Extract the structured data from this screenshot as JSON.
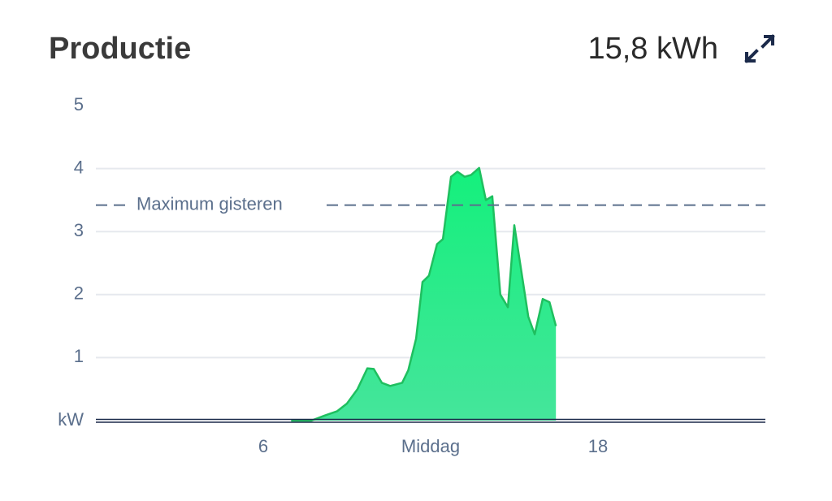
{
  "chart_data": {
    "type": "area",
    "title": "Productie",
    "total": "15,8 kWh",
    "color": "#22e07f",
    "x": [
      7.0,
      7.72,
      8.2,
      8.65,
      9.0,
      9.38,
      9.73,
      9.96,
      10.25,
      10.55,
      10.98,
      11.2,
      11.48,
      11.71,
      11.94,
      12.23,
      12.44,
      12.73,
      12.96,
      13.22,
      13.45,
      13.74,
      13.98,
      14.21,
      14.5,
      14.77,
      15.0,
      15.5,
      15.73,
      16.02,
      16.26,
      16.49
    ],
    "values": [
      0,
      0,
      0.08,
      0.15,
      0.27,
      0.5,
      0.83,
      0.82,
      0.6,
      0.55,
      0.6,
      0.8,
      1.3,
      2.2,
      2.3,
      2.8,
      2.88,
      3.87,
      3.95,
      3.87,
      3.9,
      4.01,
      3.5,
      3.56,
      2.0,
      1.8,
      3.1,
      1.65,
      1.37,
      1.93,
      1.88,
      1.5
    ],
    "xlim": [
      0,
      24
    ],
    "xticks": [
      6,
      {
        "value": 12,
        "label": "Middag"
      },
      18
    ],
    "ylim": [
      0,
      5
    ],
    "yticks": [
      {
        "value": 0,
        "label": "kW"
      },
      1,
      2,
      3,
      4,
      5
    ],
    "grid": true,
    "reference_line": {
      "value": 3.42,
      "label": "Maximum gisteren"
    }
  }
}
